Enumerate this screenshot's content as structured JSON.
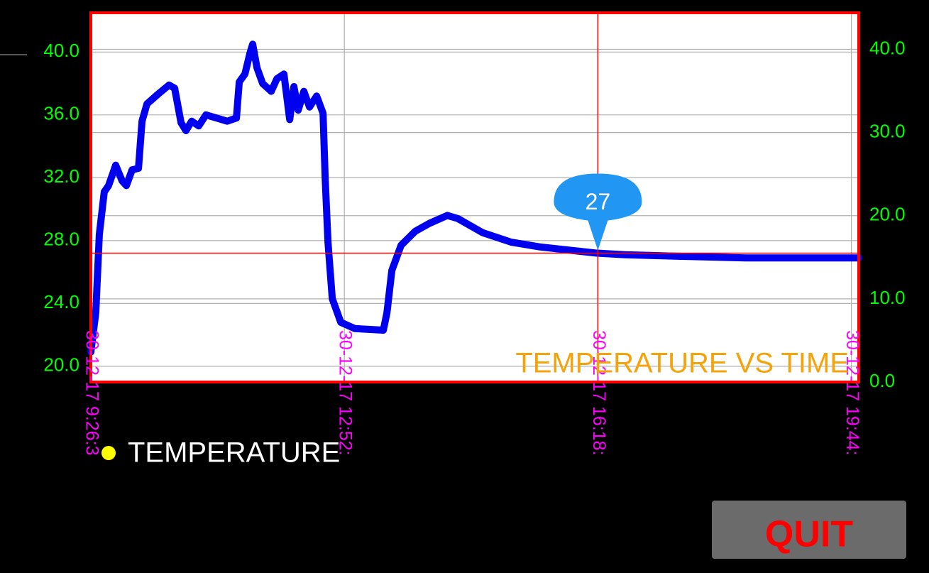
{
  "chart_data": {
    "type": "line",
    "title": "TEMPERATURE VS TIME",
    "x": [
      566,
      570.0,
      572.9,
      576.9,
      580.4,
      586.2,
      591.4,
      594.9,
      599.5,
      604.7,
      607.6,
      611.6,
      620.3,
      629.5,
      634.1,
      639.3,
      643.3,
      647.9,
      653.7,
      659.5,
      668.2,
      676.8,
      684.3,
      686.6,
      691.2,
      695.2,
      697.5,
      701.0,
      705.6,
      712.6,
      717.2,
      722.9,
      727.6,
      731.0,
      734.5,
      739.1,
      743.7,
      749.5,
      754.7,
      756.4,
      758.7,
      762.2,
      769.1,
      780.6,
      803.7,
      806.6,
      810.6,
      818.1,
      829.7,
      841.2,
      855.7,
      864.3,
      884.5,
      907.6,
      930.7,
      953.7,
      977.4,
      999.9,
      1046.1,
      1098.0,
      1190
    ],
    "series": [
      {
        "name": "TEMPERATURE",
        "color": "#0000ee",
        "legend_color": "#ffff00",
        "values": [
          20.9,
          23.4,
          28.4,
          31.1,
          31.5,
          32.8,
          31.8,
          31.5,
          32.5,
          32.6,
          35.6,
          36.7,
          37.3,
          37.9,
          37.7,
          35.5,
          35.0,
          35.6,
          35.3,
          36.0,
          35.8,
          35.6,
          35.8,
          38.1,
          38.6,
          39.9,
          40.5,
          39.0,
          38.0,
          37.5,
          38.3,
          38.6,
          35.7,
          37.8,
          36.3,
          37.5,
          36.5,
          37.2,
          36.1,
          32.0,
          27.9,
          24.3,
          22.8,
          22.4,
          22.3,
          23.4,
          26.1,
          27.7,
          28.6,
          29.1,
          29.6,
          29.4,
          28.5,
          27.9,
          27.6,
          27.4,
          27.2,
          27.1,
          27.0,
          26.9,
          26.9
        ]
      }
    ],
    "xlim": [
      566,
      1190
    ],
    "xticks": [
      {
        "value": 566,
        "label": "30-12-17 9:26:3"
      },
      {
        "value": 772,
        "label": "30-12-17 12:52:"
      },
      {
        "value": 978,
        "label": "30-12-17 16:18:"
      },
      {
        "value": 1184,
        "label": "30-12-17 19:44:"
      }
    ],
    "ylim": [
      19.0,
      42.5
    ],
    "yticks": [
      {
        "value": 20,
        "label": "20.0"
      },
      {
        "value": 24,
        "label": "24.0"
      },
      {
        "value": 28,
        "label": "28.0"
      },
      {
        "value": 32,
        "label": "32.0"
      },
      {
        "value": 36,
        "label": "36.0"
      },
      {
        "value": 40,
        "label": "40.0"
      }
    ],
    "y2lim": [
      0,
      44.4
    ],
    "y2ticks": [
      {
        "value": 0,
        "label": "0.0"
      },
      {
        "value": 10,
        "label": "10.0"
      },
      {
        "value": 20,
        "label": "20.0"
      },
      {
        "value": 30,
        "label": "30.0"
      },
      {
        "value": 40,
        "label": "40.0"
      }
    ],
    "grid": true,
    "highlight": {
      "x": 978,
      "value": 27.2,
      "label": "27",
      "color": "#2196f3"
    }
  },
  "button": {
    "label": "QUIT"
  }
}
